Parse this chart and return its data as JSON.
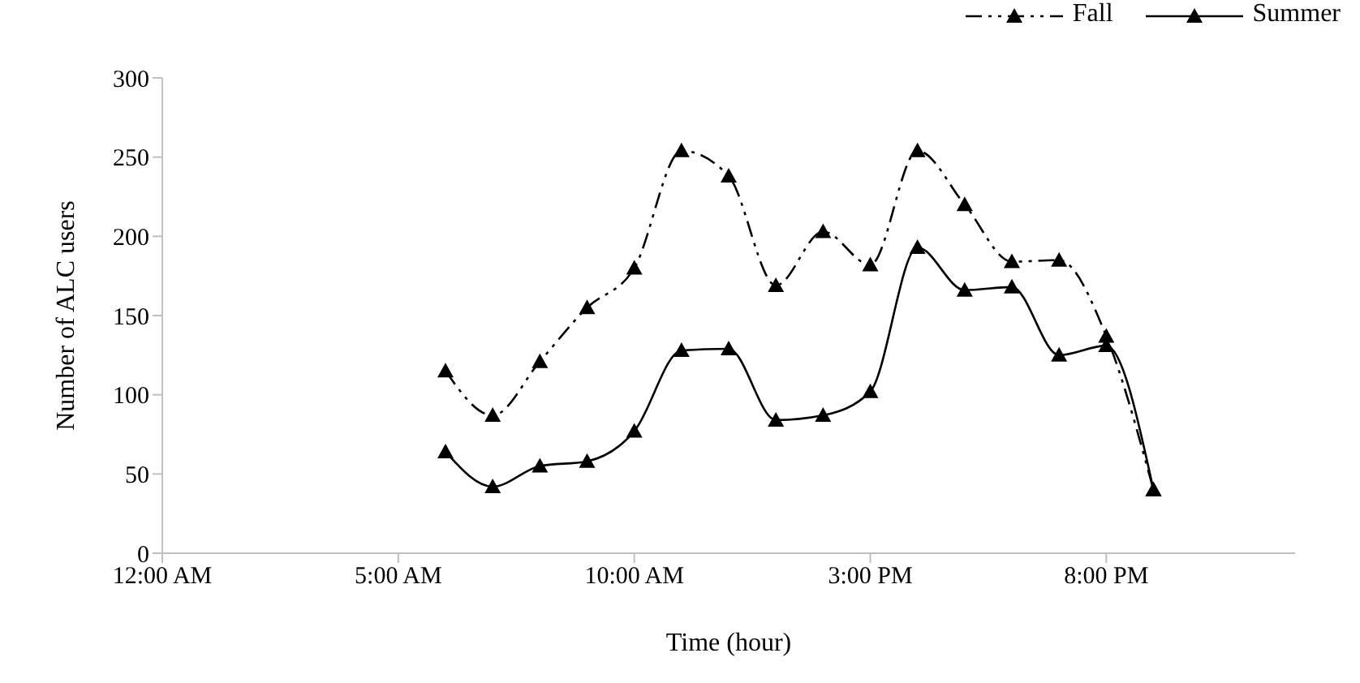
{
  "chart_data": {
    "type": "line",
    "xlabel": "Time (hour)",
    "ylabel": "Number of ALC users",
    "x": [
      6,
      7,
      8,
      9,
      10,
      11,
      12,
      13,
      14,
      15,
      16,
      17,
      18,
      19,
      20,
      21
    ],
    "series": [
      {
        "name": "Fall",
        "color": "#000000",
        "line_style": "dashed",
        "values": [
          115,
          87,
          121,
          155,
          180,
          254,
          238,
          169,
          203,
          182,
          254,
          220,
          184,
          185,
          137,
          40
        ]
      },
      {
        "name": "Summer",
        "color": "#000000",
        "line_style": "solid",
        "values": [
          64,
          42,
          55,
          58,
          77,
          128,
          129,
          84,
          87,
          102,
          193,
          166,
          168,
          125,
          131,
          40
        ]
      }
    ],
    "xlim": [
      0,
      24
    ],
    "xticks": [
      {
        "value": 0,
        "label": "12:00 AM"
      },
      {
        "value": 5,
        "label": "5:00 AM"
      },
      {
        "value": 10,
        "label": "10:00 AM"
      },
      {
        "value": 15,
        "label": "3:00 PM"
      },
      {
        "value": 20,
        "label": "8:00 PM"
      }
    ],
    "ylim": [
      0,
      300
    ],
    "yticks": [
      0,
      50,
      100,
      150,
      200,
      250,
      300
    ],
    "grid": false,
    "legend": "top right",
    "marker": "triangle"
  }
}
